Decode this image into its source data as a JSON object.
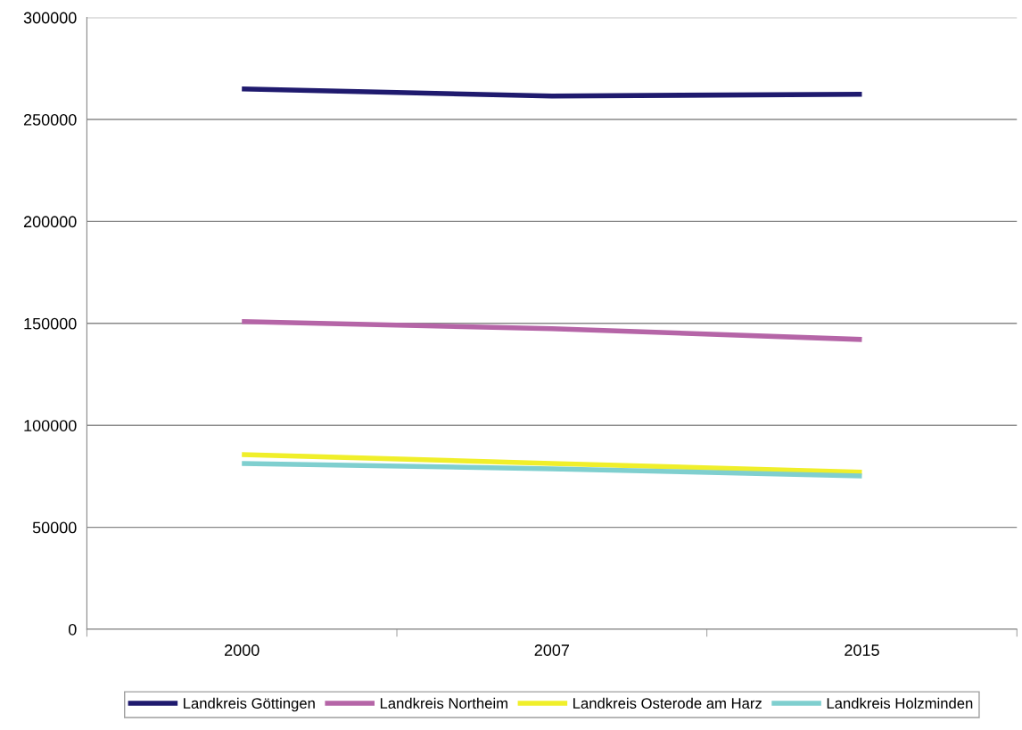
{
  "chart_data": {
    "type": "line",
    "categories": [
      "2000",
      "2007",
      "2015"
    ],
    "series": [
      {
        "name": "Landkreis Göttingen",
        "color": "#1f1a6e",
        "values": [
          265000,
          261500,
          262400
        ]
      },
      {
        "name": "Landkreis Northeim",
        "color": "#b565a7",
        "values": [
          150900,
          147400,
          142100
        ]
      },
      {
        "name": "Landkreis Osterode am Harz",
        "color": "#f0ef2a",
        "values": [
          85700,
          81300,
          77000
        ]
      },
      {
        "name": "Landkreis Holzminden",
        "color": "#7fcfcf",
        "values": [
          81300,
          78700,
          75200
        ]
      }
    ],
    "ylim": [
      0,
      300000
    ],
    "yticks": [
      0,
      50000,
      100000,
      150000,
      200000,
      250000,
      300000
    ],
    "grid": "y",
    "legend": "bottom",
    "marker": "none",
    "line_style": "solid"
  }
}
